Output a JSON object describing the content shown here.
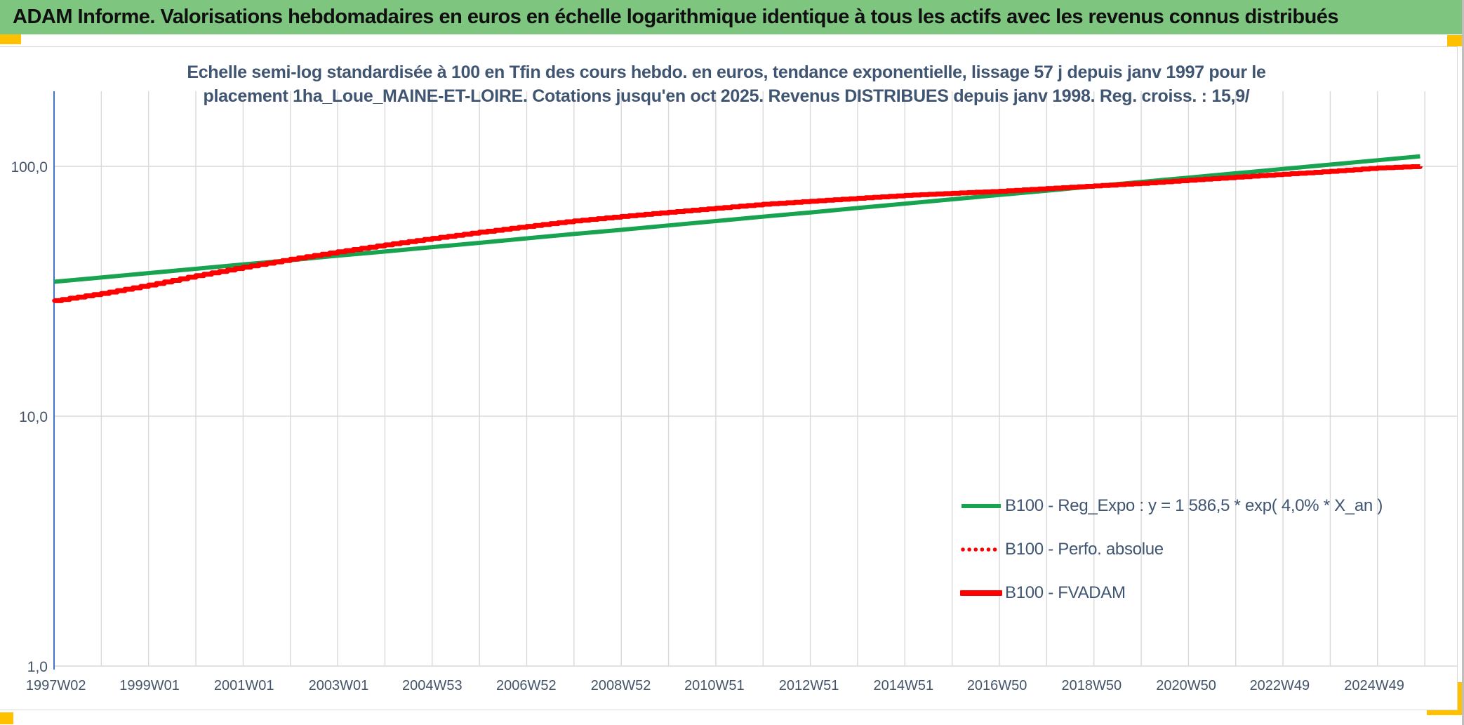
{
  "window": {
    "title": "ADAM Informe. Valorisations hebdomadaires en euros en échelle logarithmique identique à tous les actifs avec les revenus connus distribués",
    "header_bg": "#7EC57F",
    "corner_marker_color": "#FFC000"
  },
  "chart_data": {
    "type": "line",
    "title_lines": [
      "Echelle semi-log standardisée à 100 en Tfin des cours hebdo. en euros, tendance exponentielle, lissage 57 j depuis janv 1997 pour le",
      "placement 1ha_Loue_MAINE-ET-LOIRE. Cotations jusqu'en oct 2025. Revenus DISTRIBUES depuis janv 1998. Reg. croiss. : 15,9/"
    ],
    "y_axis": {
      "scale": "log",
      "ticks": [
        "100,0",
        "10,0",
        "1,0"
      ],
      "tick_values": [
        100,
        10,
        1
      ],
      "range": [
        1,
        200
      ],
      "axis_line_color": "#4472C4"
    },
    "x_axis": {
      "labels": [
        "1997W02",
        "1999W01",
        "2001W01",
        "2003W01",
        "2004W53",
        "2006W52",
        "2008W52",
        "2010W51",
        "2012W51",
        "2014W51",
        "2016W50",
        "2018W50",
        "2020W50",
        "2022W49",
        "2024W49"
      ],
      "label_years": [
        1997.04,
        1999.02,
        2001.02,
        2003.02,
        2005.0,
        2006.99,
        2008.99,
        2010.97,
        2012.97,
        2014.97,
        2016.95,
        2018.95,
        2020.95,
        2022.93,
        2024.93
      ],
      "range": [
        1997.0,
        2026.7
      ],
      "gridline_interval_years": 1,
      "gridline_color": "#D9D9D9"
    },
    "grid": true,
    "legend_position": "inside-bottom-right",
    "x": [
      1997,
      1998,
      1999,
      2000,
      2001,
      2002,
      2003,
      2004,
      2005,
      2006,
      2007,
      2008,
      2009,
      2010,
      2011,
      2012,
      2013,
      2014,
      2015,
      2016,
      2017,
      2018,
      2019,
      2020,
      2021,
      2022,
      2023,
      2024,
      2025,
      2025.9
    ],
    "series": [
      {
        "name": "B100 - Reg_Expo : y = 1 586,5 * exp( 4,0% *  X_an )",
        "color": "#17A34F",
        "style": "solid",
        "shape": "exponential-trend",
        "values": [
          34.5,
          35.9,
          37.4,
          38.9,
          40.5,
          42.1,
          43.9,
          45.6,
          47.5,
          49.4,
          51.5,
          53.6,
          55.7,
          58.0,
          60.4,
          62.9,
          65.4,
          68.1,
          70.9,
          73.8,
          76.8,
          79.9,
          83.2,
          86.6,
          90.1,
          93.8,
          97.6,
          101.6,
          105.8,
          109.6
        ]
      },
      {
        "name": "B100 - Perfo. absolue",
        "color": "#FF0000",
        "style": "dotted",
        "shape": "step",
        "values": [
          29.0,
          31.0,
          33.5,
          36.5,
          39.5,
          42.5,
          45.5,
          48.5,
          51.5,
          54.5,
          57.5,
          60.5,
          63.0,
          65.5,
          68.0,
          70.5,
          72.5,
          74.5,
          76.5,
          78.0,
          79.5,
          81.5,
          83.5,
          85.5,
          88.0,
          90.5,
          93.0,
          95.5,
          98.5,
          100.0
        ]
      },
      {
        "name": "B100 - FVADAM",
        "color": "#FF0000",
        "style": "solid",
        "shape": "step",
        "values": [
          29.0,
          31.0,
          33.5,
          36.5,
          39.5,
          42.5,
          45.5,
          48.5,
          51.5,
          54.5,
          57.5,
          60.5,
          63.0,
          65.5,
          68.0,
          70.5,
          72.5,
          74.5,
          76.5,
          78.0,
          79.5,
          81.5,
          83.5,
          85.5,
          88.0,
          90.5,
          93.0,
          95.5,
          98.5,
          100.0
        ]
      }
    ]
  }
}
